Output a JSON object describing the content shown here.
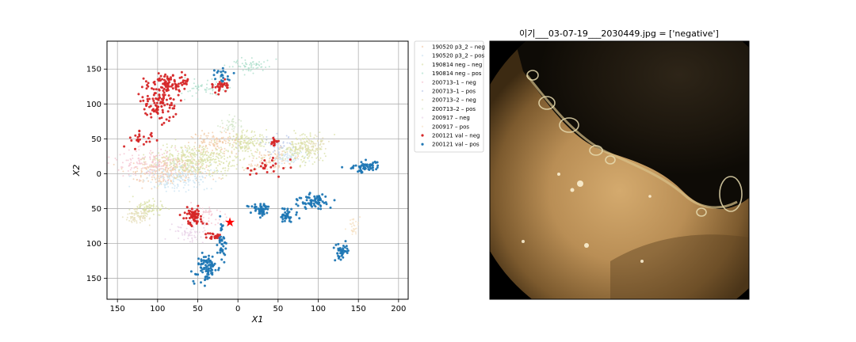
{
  "chart_data": [
    {
      "type": "scatter",
      "title": "",
      "xlabel": "X1",
      "ylabel": "X2",
      "xlim": [
        163,
        -212
      ],
      "ylim": [
        -190,
        180
      ],
      "x_axis_inverted": true,
      "y_axis_inverted": true,
      "grid": true,
      "legend_position": "right-outside",
      "x_ticks": [
        {
          "value": 150,
          "label": "150"
        },
        {
          "value": 100,
          "label": "100"
        },
        {
          "value": 50,
          "label": "50"
        },
        {
          "value": 0,
          "label": "0"
        },
        {
          "value": -50,
          "label": "50"
        },
        {
          "value": -100,
          "label": "100"
        },
        {
          "value": -150,
          "label": "150"
        },
        {
          "value": -200,
          "label": "200"
        }
      ],
      "y_ticks": [
        {
          "value": -150,
          "label": "150"
        },
        {
          "value": -100,
          "label": "100"
        },
        {
          "value": -50,
          "label": "50"
        },
        {
          "value": 0,
          "label": "0"
        },
        {
          "value": 50,
          "label": "50"
        },
        {
          "value": 100,
          "label": "100"
        },
        {
          "value": 150,
          "label": "150"
        }
      ],
      "series": [
        {
          "name": "190520 p3_2 – neg",
          "color": "#f2c9a6",
          "faint": true,
          "clusters": [
            [
              85,
              -5,
              50,
              22,
              260
            ],
            [
              30,
              -45,
              30,
              18,
              120
            ],
            [
              -40,
              -20,
              30,
              15,
              90
            ]
          ]
        },
        {
          "name": "190520 p3_2 – pos",
          "color": "#c9e3f1",
          "faint": true,
          "clusters": [
            [
              75,
              5,
              40,
              20,
              180
            ],
            [
              -65,
              -25,
              20,
              12,
              60
            ]
          ]
        },
        {
          "name": "190814 neg – neg",
          "color": "#d8e0a4",
          "faint": true,
          "clusters": [
            [
              50,
              -20,
              60,
              22,
              380
            ],
            [
              -10,
              -45,
              25,
              15,
              140
            ],
            [
              -80,
              -35,
              25,
              20,
              160
            ],
            [
              110,
              50,
              20,
              12,
              90
            ]
          ]
        },
        {
          "name": "190814 neg – pos",
          "color": "#a9ddc9",
          "faint": true,
          "clusters": [
            [
              -15,
              -155,
              22,
              10,
              60
            ],
            [
              40,
              -125,
              35,
              15,
              60
            ]
          ]
        },
        {
          "name": "200713–1 – neg",
          "color": "#f4c1cf",
          "faint": true,
          "clusters": [
            [
              110,
              -15,
              40,
              20,
              130
            ],
            [
              40,
              60,
              25,
              15,
              60
            ]
          ]
        },
        {
          "name": "200713–1 – pos",
          "color": "#b9c7e9",
          "faint": true,
          "clusters": [
            [
              -50,
              -40,
              20,
              15,
              40
            ]
          ]
        },
        {
          "name": "200713–2 – neg",
          "color": "#e4dcb5",
          "faint": true,
          "clusters": [
            [
              125,
              60,
              15,
              15,
              80
            ],
            [
              -90,
              -40,
              20,
              15,
              70
            ]
          ]
        },
        {
          "name": "200713–2 – pos",
          "color": "#d3e6c8",
          "faint": true,
          "clusters": [
            [
              10,
              -70,
              15,
              10,
              40
            ]
          ]
        },
        {
          "name": "200917 – neg",
          "color": "#e7cfe6",
          "faint": true,
          "clusters": [
            [
              60,
              85,
              25,
              15,
              60
            ]
          ]
        },
        {
          "name": "200917 – pos",
          "color": "#f6e0c2",
          "faint": true,
          "clusters": [
            [
              -145,
              75,
              8,
              15,
              30
            ]
          ]
        },
        {
          "name": "200121 val – neg",
          "color": "#d62728",
          "faint": false,
          "clusters": [
            [
              100,
              -100,
              25,
              25,
              100
            ],
            [
              85,
              -130,
              25,
              15,
              80
            ],
            [
              120,
              -50,
              12,
              10,
              25
            ],
            [
              20,
              -125,
              12,
              8,
              30
            ],
            [
              55,
              60,
              15,
              15,
              70
            ],
            [
              30,
              90,
              8,
              5,
              25
            ],
            [
              -45,
              -45,
              5,
              5,
              15
            ],
            [
              -35,
              -10,
              20,
              12,
              25
            ]
          ],
          "star": [
            10,
            70
          ]
        },
        {
          "name": "200121 val – pos",
          "color": "#1f77b4",
          "faint": false,
          "clusters": [
            [
              -160,
              -10,
              20,
              8,
              60
            ],
            [
              -95,
              40,
              20,
              10,
              70
            ],
            [
              -60,
              60,
              12,
              10,
              40
            ],
            [
              -30,
              50,
              15,
              10,
              50
            ],
            [
              40,
              135,
              15,
              20,
              80
            ],
            [
              20,
              100,
              5,
              25,
              40
            ],
            [
              -130,
              110,
              10,
              10,
              40
            ],
            [
              20,
              -140,
              12,
              8,
              20
            ]
          ]
        }
      ]
    }
  ],
  "image_panel": {
    "title": "이기___03-07-19___2030449.jpg = ['negative']"
  }
}
